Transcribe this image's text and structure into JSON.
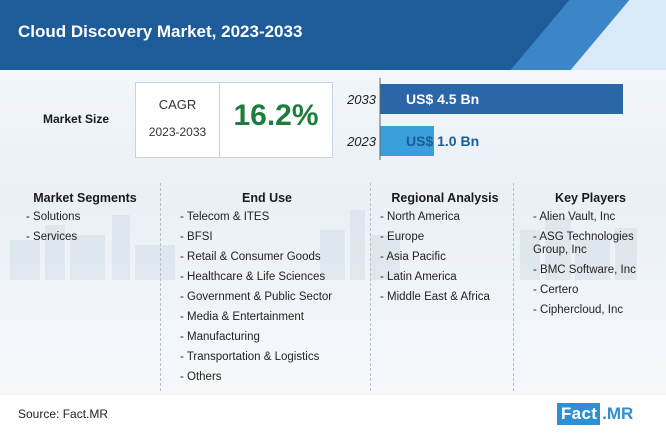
{
  "header": {
    "title": "Cloud Discovery Market, 2023-2033"
  },
  "market_size": {
    "label": "Market Size",
    "cagr_label": "CAGR",
    "cagr_years": "2023-2033",
    "cagr_value": "16.2%"
  },
  "chart_data": {
    "type": "bar",
    "orientation": "horizontal",
    "categories": [
      "2033",
      "2023"
    ],
    "values": [
      4.5,
      1.0
    ],
    "value_labels": [
      "US$ 4.5 Bn",
      "US$ 1.0 Bn"
    ],
    "title": "",
    "xlabel": "",
    "ylabel": "",
    "xlim": [
      0,
      4.5
    ],
    "grid": false,
    "colors": [
      "#2a66a8",
      "#3aa0dc"
    ]
  },
  "columns": [
    {
      "title": "Market Segments",
      "items": [
        "- Solutions",
        "- Services"
      ]
    },
    {
      "title": "End Use",
      "items": [
        "- Telecom & ITES",
        "- BFSI",
        "- Retail & Consumer Goods",
        "- Healthcare & Life Sciences",
        "- Government & Public Sector",
        "- Media & Entertainment",
        "- Manufacturing",
        "- Transportation & Logistics",
        "- Others"
      ]
    },
    {
      "title": "Regional Analysis",
      "items": [
        "- North America",
        "- Europe",
        "- Asia Pacific",
        "- Latin America",
        "- Middle East & Africa"
      ]
    },
    {
      "title": "Key Players",
      "items": [
        "- Alien Vault, Inc",
        "- ASG Technologies Group, Inc",
        "- BMC Software, Inc",
        "- Certero",
        "- Ciphercloud, Inc"
      ]
    }
  ],
  "footer": {
    "source": "Source: Fact.MR",
    "logo_fact": "Fact",
    "logo_mr": ".MR"
  },
  "colors": {
    "header": "#1e5b99",
    "cagr_value": "#1e7c3c",
    "bar_2033": "#2a66a8",
    "bar_2023": "#3aa0dc",
    "logo": "#2f8fd0"
  }
}
